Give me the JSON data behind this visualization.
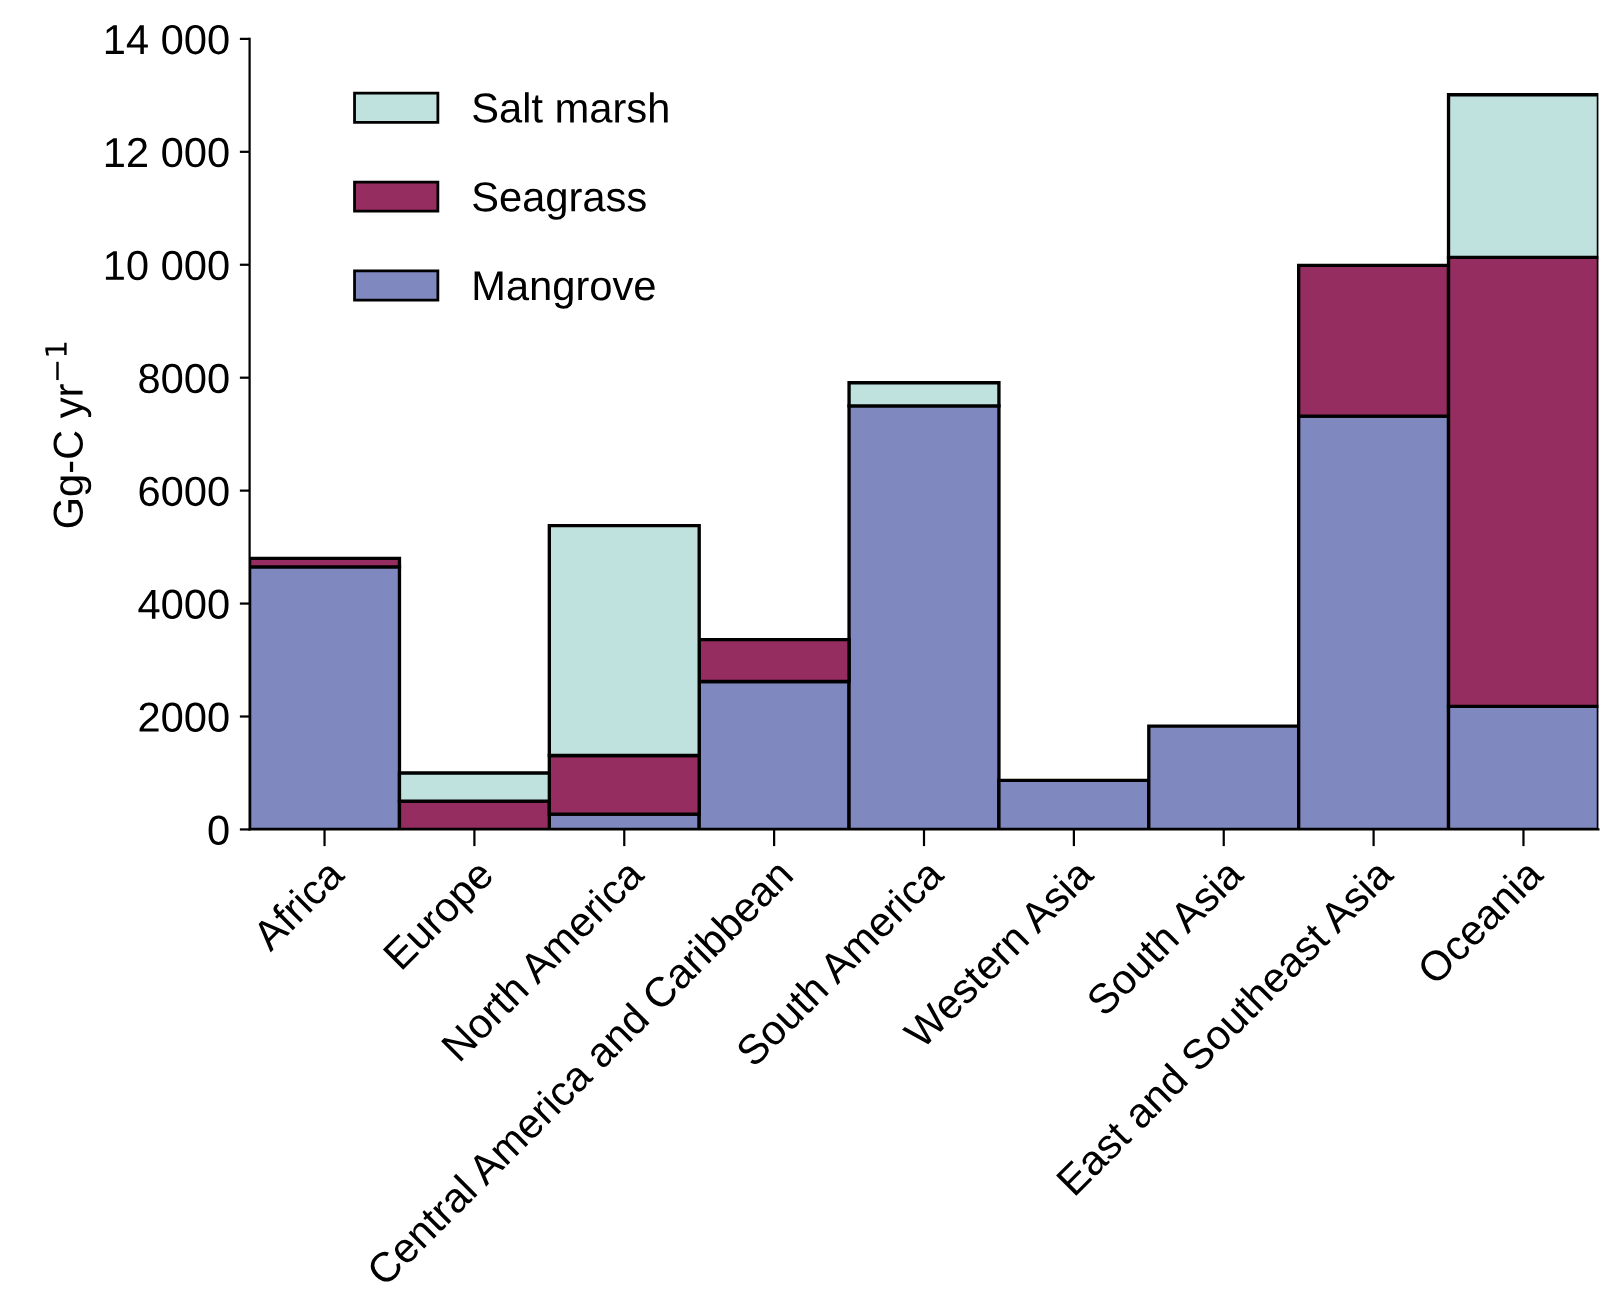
{
  "chart_data": {
    "type": "bar",
    "stacked": true,
    "ylabel": "Gg-C yr$^{−1}$",
    "categories": [
      "Africa",
      "Europe",
      "North America",
      "Central America and Caribbean",
      "South America",
      "Western Asia",
      "South Asia",
      "East and Southeast Asia",
      "Oceania"
    ],
    "series": [
      {
        "name": "Mangrove",
        "color": "#8088c0",
        "values": [
          4650,
          0,
          270,
          2620,
          7500,
          870,
          1830,
          7320,
          2180
        ]
      },
      {
        "name": "Seagrass",
        "color": "#952d60",
        "values": [
          150,
          500,
          1040,
          740,
          null,
          0,
          0,
          2670,
          7950
        ]
      },
      {
        "name": "Salt marsh",
        "color": "#c0e2df",
        "values": [
          0,
          500,
          4070,
          0,
          410,
          0,
          0,
          0,
          2880
        ]
      }
    ],
    "ylim": [
      0,
      14000
    ],
    "yticks": [
      0,
      2000,
      4000,
      6000,
      8000,
      {
        "value": 10000,
        "label": "10 000"
      },
      {
        "value": 12000,
        "label": "12 000"
      },
      {
        "value": 14000,
        "label": "14 000"
      }
    ],
    "grid": false,
    "legend": "top left"
  }
}
